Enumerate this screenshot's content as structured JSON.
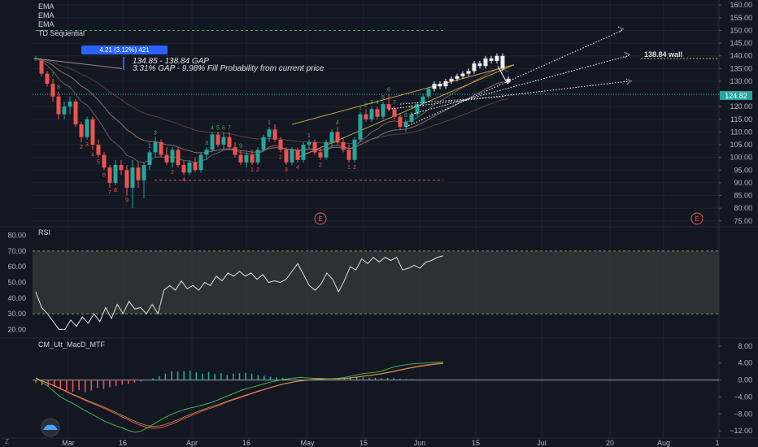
{
  "indicator_labels": [
    "EMA",
    "EMA",
    "EMA",
    "TD Sequential"
  ],
  "measure_box": "4.21 (3.12%) 421",
  "gap_annotation": {
    "line1": "134.85 - 138.84 GAP",
    "line2": "3.31% GAP - 9.98% Fill Probability from current price"
  },
  "wall_label": "138.84 wall",
  "last_price_label": "124.82",
  "earnings_marker": "E",
  "rsi_label": "RSI",
  "macd_label": "CM_Ult_MacD_MTF",
  "corner_label": "Z",
  "colors": {
    "background": "#131722",
    "up": "#26a69a",
    "down": "#ef5350",
    "td_green": "#4caf50",
    "td_red": "#ef5350",
    "rsi_line": "#e0e0e0",
    "rsi_band": "#3a3a3a",
    "rsi_band_edge": "#4caf50",
    "macd_line": "#4caf50",
    "signal_line": "#ef5350",
    "trend_line": "#c8a84b",
    "last_price": "#26a69a",
    "measure_box": "#2962ff",
    "dashed_level_green": "#4caf50",
    "dashed_level_red": "#ef5350"
  },
  "chart_data": [
    {
      "type": "candlestick",
      "x_tick_labels": [
        "Mar",
        "16",
        "Apr",
        "16",
        "May",
        "15",
        "Jun",
        "15",
        "Jul",
        "20",
        "Aug",
        "1"
      ],
      "y_ticks": [
        75,
        80,
        85,
        90,
        95,
        100,
        105,
        110,
        115,
        120,
        125,
        130,
        135,
        140,
        145,
        150,
        155,
        160
      ],
      "y_tick_labels": [
        "75.00",
        "80.00",
        "85.00",
        "90.00",
        "95.00",
        "100.00",
        "105.00",
        "110.00",
        "115.00",
        "120.00",
        "125.00",
        "130.00",
        "135.00",
        "140.00",
        "145.00",
        "150.00",
        "155.00",
        "160.00"
      ],
      "ylim": [
        73,
        162
      ],
      "levels": {
        "green_dashed": 150,
        "red_dashed": 91,
        "wall": 138.84,
        "last_price": 124.82
      },
      "candles": [
        [
          139.0,
          140.0,
          138.0,
          139.0
        ],
        [
          138.0,
          139.0,
          132.0,
          133.0
        ],
        [
          133.0,
          134.0,
          128.0,
          129.0
        ],
        [
          129.0,
          131.0,
          122.0,
          124.0
        ],
        [
          124.0,
          126.0,
          115.0,
          117.0
        ],
        [
          117.0,
          122.0,
          115.0,
          120.0
        ],
        [
          120.0,
          124.0,
          117.0,
          122.0
        ],
        [
          122.0,
          123.0,
          112.0,
          113.0
        ],
        [
          113.0,
          114.0,
          106.0,
          108.0
        ],
        [
          108.0,
          116.0,
          107.0,
          115.0
        ],
        [
          115.0,
          116.0,
          103.0,
          105.0
        ],
        [
          105.0,
          107.0,
          100.0,
          101.0
        ],
        [
          101.0,
          102.0,
          95.0,
          96.0
        ],
        [
          96.0,
          97.0,
          88.0,
          90.0
        ],
        [
          90.0,
          99.0,
          89.0,
          97.0
        ],
        [
          97.0,
          99.0,
          93.0,
          95.0
        ],
        [
          95.0,
          97.0,
          85.0,
          88.0
        ],
        [
          88.0,
          99.0,
          80.0,
          96.0
        ],
        [
          96.0,
          98.0,
          88.0,
          91.0
        ],
        [
          91.0,
          98.0,
          84.0,
          97.0
        ],
        [
          97.0,
          103.0,
          95.0,
          102.0
        ],
        [
          102.0,
          108.0,
          100.0,
          106.0
        ],
        [
          106.0,
          107.0,
          100.0,
          101.0
        ],
        [
          101.0,
          104.0,
          97.0,
          98.0
        ],
        [
          98.0,
          104.0,
          96.0,
          103.0
        ],
        [
          103.0,
          104.0,
          96.0,
          97.0
        ],
        [
          97.0,
          99.0,
          93.0,
          94.0
        ],
        [
          94.0,
          99.0,
          93.0,
          98.0
        ],
        [
          98.0,
          100.0,
          94.0,
          95.0
        ],
        [
          95.0,
          102.0,
          94.0,
          101.0
        ],
        [
          101.0,
          104.0,
          99.0,
          103.0
        ],
        [
          103.0,
          110.0,
          102.0,
          109.0
        ],
        [
          109.0,
          110.0,
          104.0,
          105.0
        ],
        [
          105.0,
          110.0,
          103.0,
          108.0
        ],
        [
          108.0,
          110.0,
          103.0,
          104.0
        ],
        [
          104.0,
          106.0,
          100.0,
          101.0
        ],
        [
          101.0,
          103.0,
          97.0,
          98.0
        ],
        [
          98.0,
          102.0,
          96.0,
          101.0
        ],
        [
          101.0,
          103.0,
          97.0,
          98.0
        ],
        [
          98.0,
          104.0,
          97.0,
          103.0
        ],
        [
          103.0,
          109.0,
          102.0,
          108.0
        ],
        [
          108.0,
          112.0,
          106.0,
          111.0
        ],
        [
          111.0,
          113.0,
          106.0,
          107.0
        ],
        [
          107.0,
          108.0,
          102.0,
          103.0
        ],
        [
          103.0,
          104.0,
          97.0,
          98.0
        ],
        [
          98.0,
          104.0,
          97.0,
          103.0
        ],
        [
          103.0,
          104.0,
          98.0,
          99.0
        ],
        [
          99.0,
          106.0,
          98.0,
          105.0
        ],
        [
          105.0,
          107.0,
          103.0,
          106.0
        ],
        [
          106.0,
          107.0,
          101.0,
          102.0
        ],
        [
          102.0,
          104.0,
          99.0,
          100.0
        ],
        [
          100.0,
          107.0,
          99.0,
          106.0
        ],
        [
          106.0,
          111.0,
          104.0,
          110.0
        ],
        [
          110.0,
          112.0,
          105.0,
          106.0
        ],
        [
          106.0,
          108.0,
          102.0,
          103.0
        ],
        [
          103.0,
          105.0,
          98.0,
          99.0
        ],
        [
          99.0,
          108.0,
          98.0,
          107.0
        ],
        [
          107.0,
          118.0,
          106.0,
          117.0
        ],
        [
          117.0,
          119.0,
          114.0,
          115.0
        ],
        [
          115.0,
          120.0,
          114.0,
          119.0
        ],
        [
          119.0,
          120.0,
          115.0,
          116.0
        ],
        [
          116.0,
          122.0,
          115.0,
          121.0
        ],
        [
          121.0,
          125.0,
          118.0,
          119.0
        ],
        [
          119.0,
          120.0,
          115.0,
          116.0
        ],
        [
          116.0,
          117.0,
          111.0,
          112.0
        ],
        [
          112.0,
          115.0,
          110.0,
          114.0
        ],
        [
          114.0,
          118.0,
          113.0,
          117.0
        ],
        [
          117.0,
          122.0,
          116.0,
          121.0
        ],
        [
          121.0,
          125.0,
          120.0,
          124.0
        ],
        [
          124.0,
          128.0,
          123.0,
          127.0
        ],
        [
          127.0,
          130.0,
          126.0,
          129.0
        ],
        [
          129.0,
          130.0,
          127.0,
          128.0
        ],
        [
          128.0,
          131.0,
          127.0,
          130.0
        ],
        [
          130.0,
          132.0,
          129.0,
          131.0
        ],
        [
          131.0,
          133.0,
          130.0,
          132.0
        ],
        [
          132.0,
          134.0,
          131.0,
          133.0
        ],
        [
          133.0,
          135.0,
          132.0,
          134.0
        ],
        [
          134.0,
          138.0,
          133.0,
          137.0
        ],
        [
          137.0,
          138.0,
          135.0,
          136.0
        ],
        [
          136.0,
          140.0,
          135.0,
          139.0
        ],
        [
          139.0,
          140.0,
          137.0,
          138.0
        ],
        [
          138.0,
          141.0,
          137.0,
          140.0
        ],
        [
          140.0,
          141.0,
          134.0,
          135.0
        ],
        [
          131.0,
          132.0,
          129.0,
          129.5
        ]
      ],
      "td_counts": [
        {
          "i": 3,
          "n": "7",
          "c": "green"
        },
        {
          "i": 4,
          "n": "8",
          "c": "green"
        },
        {
          "i": 8,
          "n": "2",
          "c": "red"
        },
        {
          "i": 9,
          "n": "3",
          "c": "red"
        },
        {
          "i": 10,
          "n": "4",
          "c": "red"
        },
        {
          "i": 11,
          "n": "5",
          "c": "red"
        },
        {
          "i": 12,
          "n": "6",
          "c": "red"
        },
        {
          "i": 13,
          "n": "7",
          "c": "red"
        },
        {
          "i": 14,
          "n": "8",
          "c": "red"
        },
        {
          "i": 16,
          "n": "9",
          "c": "red"
        },
        {
          "i": 20,
          "n": "1",
          "c": "green"
        },
        {
          "i": 21,
          "n": "3",
          "c": "green"
        },
        {
          "i": 24,
          "n": "2",
          "c": "red"
        },
        {
          "i": 26,
          "n": "4",
          "c": "red"
        },
        {
          "i": 30,
          "n": "3",
          "c": "green"
        },
        {
          "i": 31,
          "n": "4",
          "c": "green"
        },
        {
          "i": 32,
          "n": "5",
          "c": "green"
        },
        {
          "i": 33,
          "n": "6",
          "c": "green"
        },
        {
          "i": 34,
          "n": "7",
          "c": "green"
        },
        {
          "i": 36,
          "n": "9",
          "c": "green"
        },
        {
          "i": 38,
          "n": "1",
          "c": "red"
        },
        {
          "i": 39,
          "n": "2",
          "c": "red"
        },
        {
          "i": 41,
          "n": "1",
          "c": "green"
        },
        {
          "i": 43,
          "n": "2",
          "c": "red"
        },
        {
          "i": 44,
          "n": "3",
          "c": "red"
        },
        {
          "i": 46,
          "n": "4",
          "c": "red"
        },
        {
          "i": 48,
          "n": "1",
          "c": "green"
        },
        {
          "i": 50,
          "n": "2",
          "c": "red"
        },
        {
          "i": 53,
          "n": "4",
          "c": "green"
        },
        {
          "i": 55,
          "n": "1",
          "c": "red"
        },
        {
          "i": 56,
          "n": "2",
          "c": "red"
        },
        {
          "i": 57,
          "n": "1",
          "c": "green"
        },
        {
          "i": 58,
          "n": "2",
          "c": "green"
        },
        {
          "i": 59,
          "n": "3",
          "c": "green"
        },
        {
          "i": 60,
          "n": "4",
          "c": "green"
        },
        {
          "i": 61,
          "n": "5",
          "c": "green"
        },
        {
          "i": 62,
          "n": "6",
          "c": "green"
        },
        {
          "i": 63,
          "n": "7",
          "c": "green"
        },
        {
          "i": 65,
          "n": "8",
          "c": "green"
        },
        {
          "i": 66,
          "n": "9",
          "c": "green"
        }
      ]
    },
    {
      "type": "line",
      "name": "RSI",
      "y_ticks": [
        20,
        30,
        40,
        50,
        60,
        70,
        80
      ],
      "y_tick_labels": [
        "20.00",
        "30.00",
        "40.00",
        "50.00",
        "60.00",
        "70.00",
        "80.00"
      ],
      "ylim": [
        15,
        85
      ],
      "band": [
        30,
        70
      ],
      "values": [
        44,
        34,
        30,
        25,
        20,
        20,
        26,
        22,
        28,
        24,
        30,
        25,
        34,
        27,
        36,
        30,
        38,
        33,
        34,
        30,
        36,
        30,
        45,
        48,
        45,
        51,
        46,
        48,
        45,
        50,
        48,
        54,
        51,
        56,
        54,
        57,
        54,
        56,
        52,
        55,
        50,
        51,
        50,
        52,
        57,
        62,
        55,
        48,
        45,
        49,
        56,
        52,
        44,
        51,
        60,
        58,
        65,
        62,
        66,
        63,
        66,
        64,
        66,
        58,
        59,
        61,
        59,
        63,
        64,
        66,
        67
      ]
    },
    {
      "type": "bar-line",
      "name": "CM_Ult_MacD_MTF",
      "y_ticks": [
        -12,
        -8,
        -4,
        0,
        4,
        8
      ],
      "y_tick_labels": [
        "−12.00",
        "−8.00",
        "−4.00",
        "0.00",
        "4.00",
        "8.00"
      ],
      "ylim": [
        -13.5,
        9.5
      ],
      "macd": [
        0.5,
        -0.5,
        -1.5,
        -2.8,
        -4.0,
        -4.8,
        -5.5,
        -6.4,
        -7.2,
        -8.0,
        -8.8,
        -9.6,
        -10.2,
        -10.8,
        -11.3,
        -11.9,
        -12.3,
        -12.1,
        -11.3,
        -10.5,
        -9.6,
        -8.8,
        -8.1,
        -7.5,
        -7.0,
        -6.6,
        -6.3,
        -5.9,
        -5.5,
        -5.0,
        -4.4,
        -3.8,
        -3.2,
        -2.6,
        -2.1,
        -1.7,
        -1.3,
        -0.9,
        -0.5,
        -0.2,
        0.1,
        0.3,
        0.5,
        0.6,
        0.5,
        0.4,
        0.4,
        0.3,
        0.3,
        0.4,
        0.6,
        0.9,
        1.2,
        1.5,
        1.7,
        1.8,
        2.1,
        2.6,
        3.1,
        3.4,
        3.6,
        3.8,
        3.9,
        4.0,
        4.1,
        4.2,
        4.2
      ],
      "signal": [
        0.5,
        -0.2,
        -0.8,
        -1.4,
        -2.1,
        -2.8,
        -3.5,
        -4.1,
        -4.8,
        -5.4,
        -6.0,
        -6.6,
        -7.3,
        -8.0,
        -8.7,
        -9.4,
        -10.1,
        -10.7,
        -11.2,
        -11.4,
        -11.3,
        -10.9,
        -10.4,
        -9.8,
        -9.1,
        -8.5,
        -7.9,
        -7.3,
        -6.8,
        -6.3,
        -5.8,
        -5.2,
        -4.7,
        -4.2,
        -3.7,
        -3.2,
        -2.7,
        -2.3,
        -1.8,
        -1.4,
        -1.0,
        -0.7,
        -0.4,
        -0.2,
        0.0,
        0.1,
        0.2,
        0.3,
        0.3,
        0.3,
        0.4,
        0.5,
        0.7,
        0.9,
        1.1,
        1.3,
        1.5,
        1.8,
        2.1,
        2.4,
        2.7,
        3.0,
        3.3,
        3.5,
        3.7,
        3.9,
        4.0
      ],
      "histogram": [
        -0.7,
        -1.2,
        -1.5,
        -1.7,
        -2.1,
        -2.6,
        -2.8,
        -2.4,
        -2.9,
        -2.5,
        -1.9,
        -2.1,
        -1.7,
        -1.4,
        -1.1,
        -0.9,
        -0.6,
        -0.3,
        0.0,
        0.4,
        0.9,
        1.5,
        2.1,
        2.0,
        2.1,
        2.2,
        1.8,
        1.5,
        1.9,
        1.4,
        1.6,
        1.2,
        1.5,
        1.6,
        1.7,
        1.5,
        1.2,
        1.0,
        0.8,
        0.6,
        0.5,
        0.4,
        0.2,
        0.1,
        0.1,
        0.0,
        0.1,
        0.1,
        0.1,
        0.2,
        0.5,
        0.7,
        0.6,
        0.6,
        0.5,
        0.5,
        0.4,
        0.5,
        0.4,
        0.3,
        0.2,
        0.2,
        0.1,
        0.1,
        0.1,
        0.1,
        0.1
      ]
    }
  ]
}
